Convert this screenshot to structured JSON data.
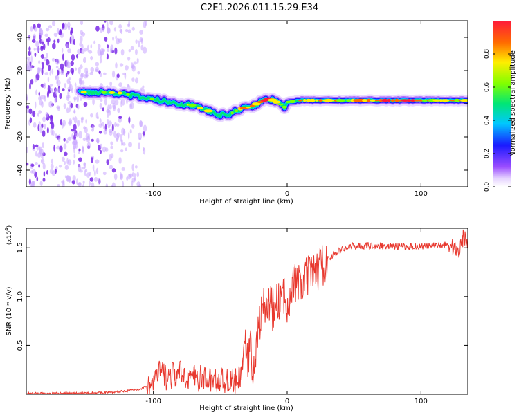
{
  "figure_title": "C2E1.2026.011.15.29.E34",
  "chart_data": [
    {
      "type": "heatmap",
      "xlabel": "Height of straight line (km)",
      "ylabel": "Frequency (Hz)",
      "xlim": [
        -195,
        135
      ],
      "ylim": [
        -50,
        50
      ],
      "xticks": [
        -100,
        0,
        100
      ],
      "xtick_labels": [
        "-100",
        "0",
        "100"
      ],
      "yticks": [
        -40,
        -20,
        0,
        20,
        40
      ],
      "ytick_labels": [
        "-40",
        "-20",
        "0",
        "20",
        "40"
      ],
      "ridge": {
        "x": [
          -155,
          -140,
          -125,
          -110,
          -95,
          -80,
          -70,
          -60,
          -50,
          -42,
          -35,
          -28,
          -20,
          -14,
          -10,
          -6,
          -2,
          0,
          10,
          30,
          50,
          70,
          90,
          110,
          135
        ],
        "y": [
          7,
          7,
          6.5,
          4,
          2,
          0,
          -1,
          -4,
          -7,
          -6,
          -3,
          -2,
          1,
          3,
          2,
          0,
          -2,
          1,
          2,
          2,
          2,
          2,
          2,
          2,
          2
        ],
        "amplitude": [
          0.5,
          0.5,
          0.5,
          0.45,
          0.5,
          0.55,
          0.6,
          0.5,
          0.4,
          0.55,
          0.7,
          0.6,
          0.8,
          0.9,
          0.6,
          0.5,
          0.6,
          0.55,
          0.6,
          0.7,
          0.65,
          0.75,
          0.9,
          0.65,
          0.6
        ]
      },
      "noise_region": {
        "x_range": [
          -195,
          -105
        ],
        "y_range": [
          -50,
          50
        ]
      },
      "colorbar": {
        "label": "Normalized spectral amplitude",
        "range": [
          0,
          1
        ],
        "ticks": [
          0.0,
          0.2,
          0.4,
          0.6,
          0.8
        ],
        "tick_labels": [
          "0.0",
          "0.2",
          "0.4",
          "0.6",
          "0.8"
        ]
      }
    },
    {
      "type": "line",
      "xlabel": "Height of straight line (km)",
      "ylabel": "SNR (10 * v/v)",
      "multiplier_label": "(x10",
      "multiplier_exp": "4",
      "xlim": [
        -195,
        135
      ],
      "ylim": [
        0,
        1.7
      ],
      "xticks": [
        -100,
        0,
        100
      ],
      "xtick_labels": [
        "-100",
        "0",
        "100"
      ],
      "yticks": [
        0.5,
        1.0,
        1.5
      ],
      "ytick_labels": [
        "0.5",
        "1.0",
        "1.5"
      ],
      "series": [
        {
          "name": "SNR",
          "color": "#e8382e",
          "x": [
            -195,
            -160,
            -130,
            -110,
            -100,
            -95,
            -90,
            -80,
            -70,
            -60,
            -50,
            -40,
            -35,
            -32,
            -30,
            -28,
            -25,
            -22,
            -20,
            -15,
            -10,
            -5,
            0,
            5,
            10,
            15,
            20,
            25,
            30,
            40,
            50,
            70,
            90,
            110,
            120,
            125,
            128,
            130,
            132,
            135
          ],
          "y": [
            0.01,
            0.01,
            0.02,
            0.05,
            0.12,
            0.22,
            0.18,
            0.2,
            0.17,
            0.15,
            0.14,
            0.13,
            0.15,
            0.55,
            0.3,
            0.5,
            0.25,
            0.6,
            0.8,
            0.95,
            0.85,
            1.0,
            0.95,
            1.15,
            1.1,
            1.2,
            1.25,
            1.3,
            1.38,
            1.48,
            1.52,
            1.52,
            1.51,
            1.52,
            1.54,
            1.5,
            1.45,
            1.55,
            1.62,
            1.55
          ]
        }
      ]
    }
  ],
  "colors": {
    "line": "#e8382e",
    "noise": "#8a3cf0",
    "axis": "#000000"
  }
}
